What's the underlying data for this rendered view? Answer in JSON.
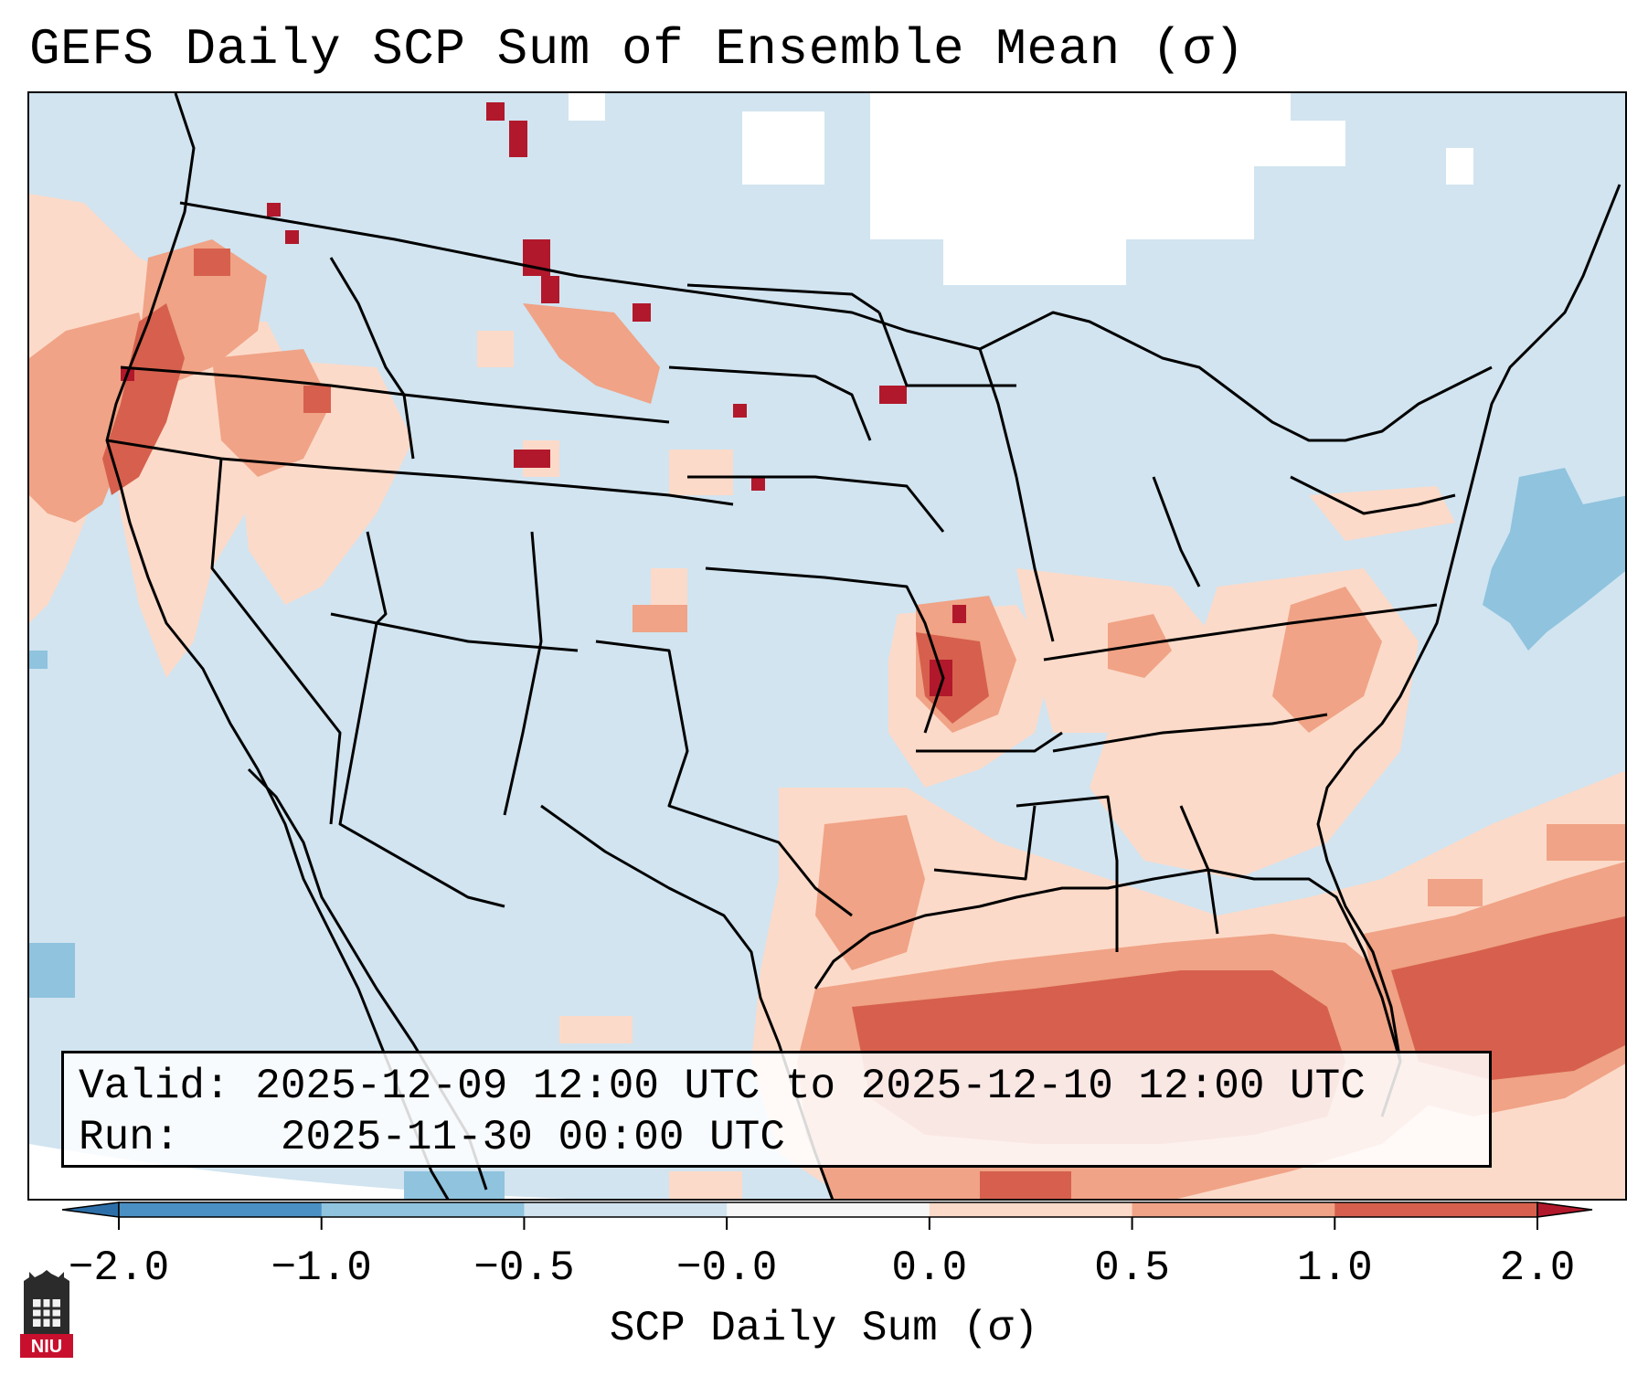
{
  "title": "GEFS Daily SCP Sum of Ensemble Mean (σ)",
  "info": {
    "valid_label": "Valid:",
    "valid_value": "2025-12-09 12:00 UTC to 2025-12-10 12:00 UTC",
    "run_label": "Run:",
    "run_value": "2025-11-30 00:00 UTC"
  },
  "colorbar": {
    "label": "SCP Daily Sum (σ)",
    "tick_labels": [
      "−2.0",
      "−1.0",
      "−0.5",
      "−0.0",
      "0.0",
      "0.5",
      "1.0",
      "2.0"
    ],
    "bin_colors": [
      "#4a90c4",
      "#8fc3de",
      "#d1e4f0",
      "#f7f7f7",
      "#fcdac9",
      "#f0a386",
      "#d6604d",
      "#b2182b"
    ],
    "extend_low_color": "#2c6fa8",
    "extend_high_color": "#b2182b"
  },
  "colors": {
    "ocean_neutral": "#d1e4f0",
    "no_data": "#ffffff",
    "weak_positive": "#fcdac9",
    "moderate_positive": "#f0a386",
    "strong_positive": "#d6604d",
    "extreme_positive": "#b2182b",
    "weak_negative": "#8fc3de",
    "boundary_lines": "#000000"
  },
  "logo": {
    "text": "NIU",
    "icon": "niu-logo-icon"
  }
}
